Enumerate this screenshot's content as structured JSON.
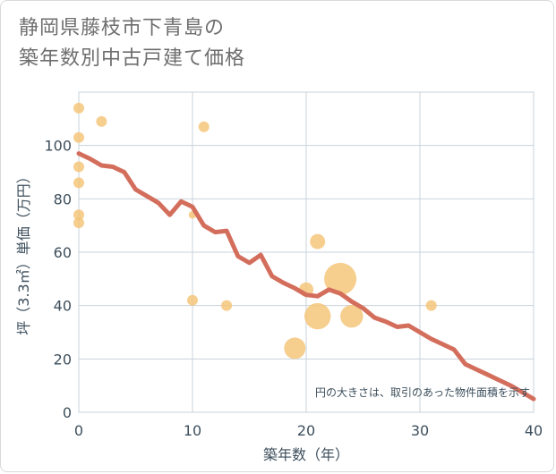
{
  "title_lines": [
    "静岡県藤枝市下青島の",
    "築年数別中古戸建て価格"
  ],
  "chart_data": {
    "type": "scatter",
    "xlabel": "築年数（年）",
    "ylabel": "坪（3.3㎡）単価（万円）",
    "xlim": [
      0,
      40
    ],
    "ylim": [
      0,
      120
    ],
    "xticks": [
      0,
      10,
      20,
      30,
      40
    ],
    "yticks": [
      0,
      20,
      40,
      60,
      80,
      100
    ],
    "grid": true,
    "note": "円の大きさは、取引のあった物件面積を示す",
    "colors": {
      "bubble": "#f5c57a",
      "line": "#d46e5c",
      "grid": "#c9d3db",
      "text": "#3d4f5c"
    },
    "bubbles": [
      {
        "x": 0,
        "y": 114,
        "size": 1
      },
      {
        "x": 0,
        "y": 103,
        "size": 1
      },
      {
        "x": 0,
        "y": 92,
        "size": 1
      },
      {
        "x": 0,
        "y": 86,
        "size": 1
      },
      {
        "x": 0,
        "y": 74,
        "size": 1
      },
      {
        "x": 0,
        "y": 71,
        "size": 1
      },
      {
        "x": 2,
        "y": 109,
        "size": 1
      },
      {
        "x": 10,
        "y": 74,
        "size": 0.5
      },
      {
        "x": 10,
        "y": 42,
        "size": 1
      },
      {
        "x": 11,
        "y": 107,
        "size": 1
      },
      {
        "x": 13,
        "y": 40,
        "size": 1
      },
      {
        "x": 19,
        "y": 24,
        "size": 4
      },
      {
        "x": 20,
        "y": 46,
        "size": 1.8
      },
      {
        "x": 21,
        "y": 64,
        "size": 2
      },
      {
        "x": 21,
        "y": 36,
        "size": 6
      },
      {
        "x": 23,
        "y": 50,
        "size": 9
      },
      {
        "x": 24,
        "y": 36,
        "size": 4.5
      },
      {
        "x": 31,
        "y": 40,
        "size": 1
      }
    ],
    "trend_line": {
      "x": [
        0,
        1,
        2,
        3,
        4,
        5,
        6,
        7,
        8,
        9,
        10,
        11,
        12,
        13,
        14,
        15,
        16,
        17,
        18,
        19,
        20,
        21,
        22,
        23,
        24,
        25,
        26,
        27,
        28,
        29,
        30,
        31,
        32,
        33,
        34,
        35,
        36,
        37,
        38,
        39,
        40
      ],
      "y": [
        97,
        95,
        92.5,
        92,
        90,
        83.5,
        81,
        78.5,
        74,
        79,
        77,
        70,
        67.5,
        68,
        58.5,
        56,
        59,
        51,
        48.5,
        46.5,
        44,
        43.5,
        46,
        44.5,
        41.5,
        39,
        35.5,
        34,
        32,
        32.5,
        30,
        27.5,
        25.5,
        23.5,
        18,
        16,
        14,
        12,
        10,
        7.5,
        5
      ]
    }
  }
}
